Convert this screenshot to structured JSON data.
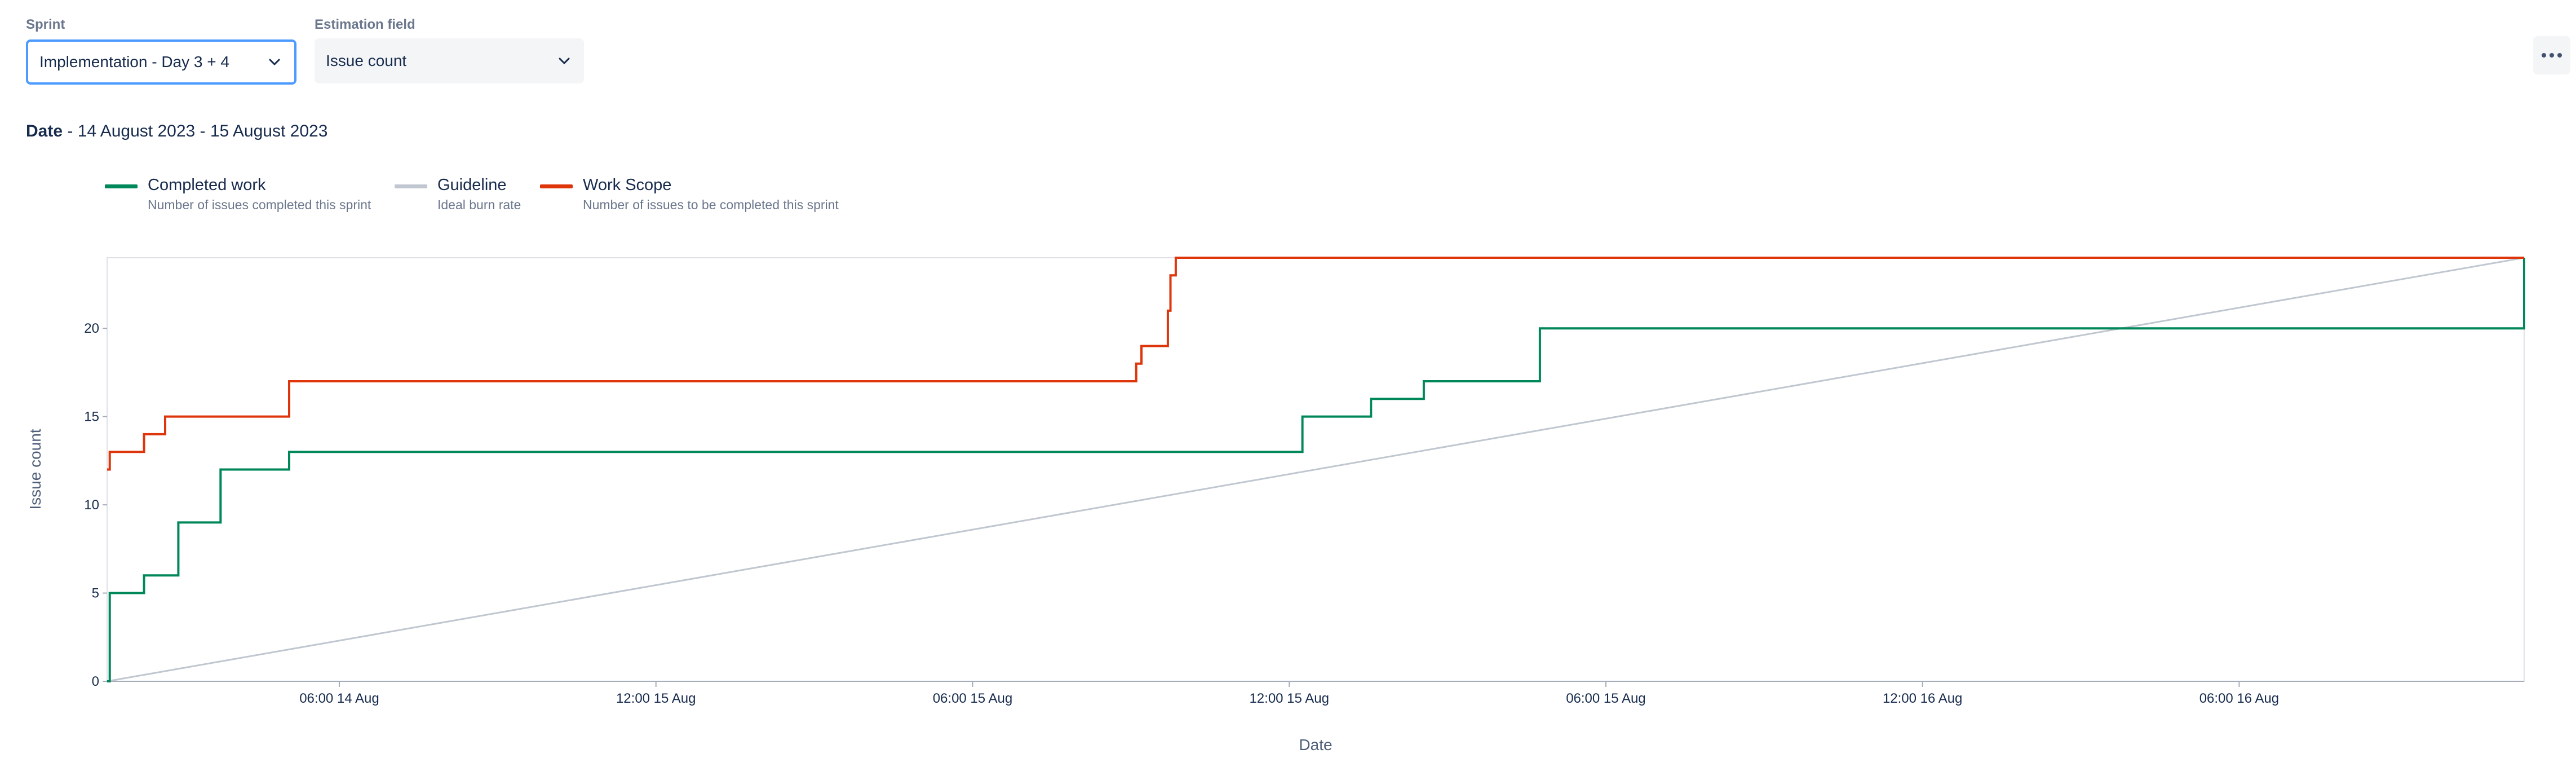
{
  "filters": {
    "sprint": {
      "label": "Sprint",
      "value": "Implementation - Day 3 + 4"
    },
    "estimation": {
      "label": "Estimation field",
      "value": "Issue count"
    }
  },
  "date_range": {
    "label": "Date",
    "value": " - 14 August 2023 - 15 August 2023"
  },
  "legend": [
    {
      "title": "Completed work",
      "subtitle": "Number of issues completed this sprint",
      "color": "#00875a"
    },
    {
      "title": "Guideline",
      "subtitle": "Ideal burn rate",
      "color": "#c1c7d0"
    },
    {
      "title": "Work Scope",
      "subtitle": "Number of issues to be completed this sprint",
      "color": "#de350b"
    }
  ],
  "chart_data": {
    "type": "line",
    "xlabel": "Date",
    "ylabel": "Issue count",
    "ylim": [
      0,
      24
    ],
    "yticks": [
      0,
      5,
      10,
      15,
      20
    ],
    "xlim_hours": [
      0,
      45.8
    ],
    "xticks": [
      {
        "at": 4.4,
        "label": "06:00 14 Aug"
      },
      {
        "at": 10.4,
        "label": "12:00 15 Aug"
      },
      {
        "at": 16.4,
        "label": "06:00 15 Aug"
      },
      {
        "at": 22.4,
        "label": "12:00 15 Aug"
      },
      {
        "at": 28.4,
        "label": "06:00 15 Aug"
      },
      {
        "at": 34.4,
        "label": "12:00 16 Aug"
      },
      {
        "at": 40.4,
        "label": "06:00 16 Aug"
      }
    ],
    "grid": false,
    "series": [
      {
        "name": "Completed work",
        "color": "#00875a",
        "step": true,
        "points": [
          [
            0,
            0
          ],
          [
            0.05,
            5
          ],
          [
            0.7,
            6
          ],
          [
            1.35,
            9
          ],
          [
            2.15,
            12
          ],
          [
            3.45,
            13
          ],
          [
            22.65,
            15
          ],
          [
            23.95,
            16
          ],
          [
            24.95,
            17
          ],
          [
            27.15,
            20
          ],
          [
            45.8,
            20
          ],
          [
            45.8,
            24
          ]
        ]
      },
      {
        "name": "Guideline",
        "color": "#c1c7d0",
        "step": false,
        "points": [
          [
            0,
            0
          ],
          [
            45.8,
            24
          ]
        ]
      },
      {
        "name": "Work Scope",
        "color": "#de350b",
        "step": true,
        "points": [
          [
            0,
            12
          ],
          [
            0.05,
            13
          ],
          [
            0.7,
            14
          ],
          [
            1.1,
            15
          ],
          [
            3.45,
            17
          ],
          [
            19.5,
            18
          ],
          [
            19.6,
            19
          ],
          [
            20.1,
            21
          ],
          [
            20.15,
            23
          ],
          [
            20.25,
            24
          ],
          [
            45.8,
            24
          ]
        ]
      }
    ]
  }
}
